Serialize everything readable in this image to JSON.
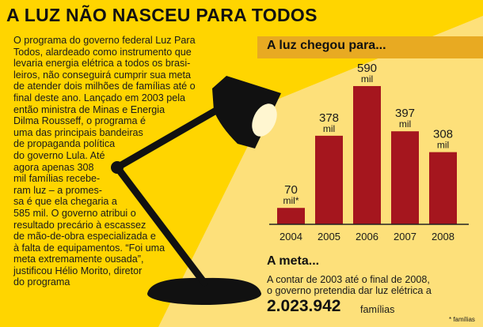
{
  "headline": "A LUZ NÃO NASCEU PARA TODOS",
  "article_lines": [
    "O programa do governo federal Luz Para",
    "Todos, alardeado como instrumento que",
    "levaria energia elétrica a todos os brasi-",
    "leiros, não conseguirá cumprir sua meta",
    "de atender dois milhões de famílias até o",
    "final deste ano. Lançado em 2003 pela",
    "então ministra de Minas e Energia",
    "Dilma Rousseff, o programa é",
    "uma das principais bandeiras",
    "de propaganda política",
    "do governo Lula. Até",
    "agora apenas 308",
    "mil famílias recebe-",
    "ram luz – a promes-",
    "sa é que ela chegaria a",
    "585 mil. O governo atribui o",
    "resultado precário à escassez",
    "de mão-de-obra especializada e",
    "à falta de equipamentos. “Foi uma",
    "meta extremamente ousada”,",
    "justificou Hélio Morito, diretor",
    "do programa"
  ],
  "chart_header": "A luz chegou para...",
  "meta": {
    "title": "A meta...",
    "line1": "A contar de 2003 até o final de 2008,",
    "line2": "o governo pretendia dar luz elétrica a",
    "number": "2.023.942",
    "unit": "famílias"
  },
  "footnote": "* famílias",
  "colors": {
    "background": "#ffd500",
    "light_area": "#fde07a",
    "bar": "#a5161e",
    "header_band": "#e8aa22",
    "axis": "#222222"
  },
  "chart_data": {
    "type": "bar",
    "title": "A luz chegou para...",
    "categories": [
      "2004",
      "2005",
      "2006",
      "2007",
      "2008"
    ],
    "values": [
      70,
      378,
      590,
      397,
      308
    ],
    "value_labels": [
      "70",
      "378",
      "590",
      "397",
      "308"
    ],
    "unit_labels": [
      "mil*",
      "mil",
      "mil",
      "mil",
      "mil"
    ],
    "ylim": [
      0,
      600
    ],
    "grid": false,
    "legend": "none"
  }
}
